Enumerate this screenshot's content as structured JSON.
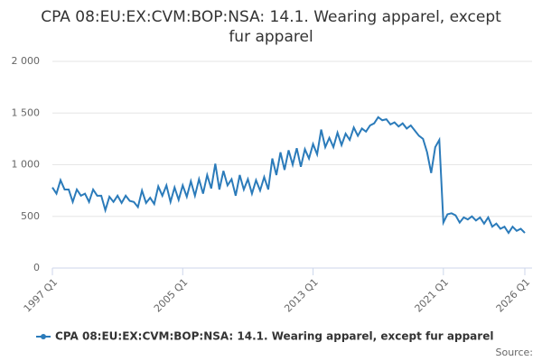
{
  "chart_data": {
    "type": "line",
    "title": "CPA 08:EU:EX:CVM:BOP:NSA: 14.1. Wearing apparel, except fur apparel",
    "categories": [
      "1997 Q1",
      null,
      null,
      null,
      null,
      null,
      null,
      null,
      null,
      null,
      null,
      null,
      null,
      null,
      null,
      null,
      null,
      null,
      null,
      null,
      null,
      null,
      null,
      null,
      null,
      null,
      null,
      null,
      null,
      null,
      null,
      null,
      "2005 Q1",
      null,
      null,
      null,
      null,
      null,
      null,
      null,
      null,
      null,
      null,
      null,
      null,
      null,
      null,
      null,
      null,
      null,
      null,
      null,
      null,
      null,
      null,
      null,
      null,
      null,
      null,
      null,
      null,
      null,
      null,
      null,
      "2013 Q1",
      null,
      null,
      null,
      null,
      null,
      null,
      null,
      null,
      null,
      null,
      null,
      null,
      null,
      null,
      null,
      null,
      null,
      null,
      null,
      null,
      null,
      null,
      null,
      null,
      null,
      null,
      null,
      null,
      null,
      null,
      null,
      "2021 Q1",
      null,
      null,
      null,
      null,
      null,
      null,
      null,
      null,
      null,
      null,
      null,
      null,
      null,
      null,
      null,
      null,
      null,
      null,
      null,
      "2026 Q1"
    ],
    "series": [
      {
        "name": "CPA 08:EU:EX:CVM:BOP:NSA: 14.1. Wearing apparel, except fur apparel",
        "color": "#2b7bba",
        "values": [
          780,
          720,
          850,
          760,
          760,
          640,
          760,
          700,
          720,
          640,
          760,
          700,
          700,
          560,
          690,
          640,
          700,
          630,
          700,
          650,
          640,
          590,
          750,
          630,
          680,
          620,
          790,
          700,
          800,
          640,
          780,
          660,
          800,
          690,
          840,
          700,
          860,
          720,
          900,
          770,
          1010,
          760,
          940,
          800,
          860,
          700,
          900,
          760,
          860,
          720,
          850,
          750,
          880,
          760,
          1060,
          900,
          1120,
          950,
          1140,
          1000,
          1160,
          980,
          1150,
          1060,
          1200,
          1100,
          1340,
          1170,
          1260,
          1170,
          1310,
          1190,
          1300,
          1240,
          1360,
          1280,
          1350,
          1320,
          1380,
          1400,
          1460,
          1430,
          1440,
          1390,
          1410,
          1370,
          1400,
          1350,
          1380,
          1330,
          1280,
          1250,
          1120,
          920,
          1170,
          1240,
          440,
          520,
          530,
          510,
          440,
          490,
          470,
          500,
          460,
          490,
          430,
          490,
          400,
          430,
          380,
          400,
          340,
          400,
          360,
          380,
          340
        ]
      }
    ],
    "ylim": [
      0,
      2000
    ],
    "yticks": [
      0,
      500,
      {
        "value": 1000,
        "label": "1 000"
      },
      {
        "value": 1500,
        "label": "1 500"
      },
      {
        "value": 2000,
        "label": "2 000"
      }
    ],
    "grid": true,
    "source": "Source:"
  }
}
